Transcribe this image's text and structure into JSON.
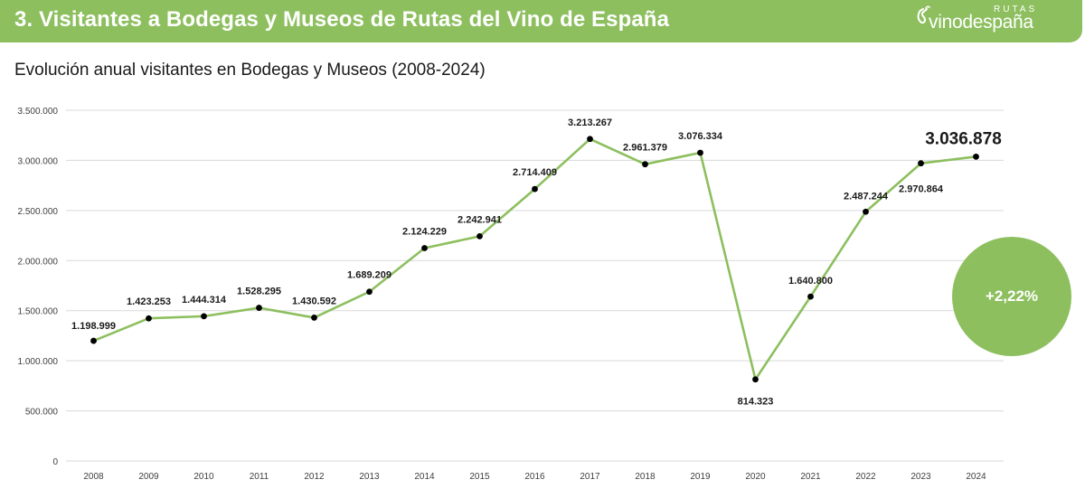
{
  "header": {
    "title": "3. Visitantes a Bodegas y Museos de Rutas del Vino de España",
    "logo_top": "RUTAS",
    "logo_word": "vinodespaña"
  },
  "colors": {
    "header_bg": "#8dbf5f",
    "line": "#8dbf5f",
    "marker": "#000000",
    "gridline": "#d9d9d9"
  },
  "callout": {
    "text": "+2,22%"
  },
  "chart_data": {
    "type": "line",
    "title": "Evolución anual visitantes en Bodegas y Museos (2008-2024)",
    "xlabel": "",
    "ylabel": "",
    "categories": [
      "2008",
      "2009",
      "2010",
      "2011",
      "2012",
      "2013",
      "2014",
      "2015",
      "2016",
      "2017",
      "2018",
      "2019",
      "2020",
      "2021",
      "2022",
      "2023",
      "2024"
    ],
    "series": [
      {
        "values": [
          1198999,
          1423253,
          1444314,
          1528295,
          1430592,
          1689209,
          2124229,
          2242941,
          2714409,
          3213267,
          2961379,
          3076334,
          814323,
          1640800,
          2487244,
          2970864,
          3036878
        ],
        "labels": [
          "1.198.999",
          "1.423.253",
          "1.444.314",
          "1.528.295",
          "1.430.592",
          "1.689.209",
          "2.124.229",
          "2.242.941",
          "2.714.409",
          "3.213.267",
          "2.961.379",
          "3.076.334",
          "814.323",
          "1.640.800",
          "2.487.244",
          "2.970.864",
          "3.036.878"
        ]
      }
    ],
    "ylim": [
      0,
      3500000
    ],
    "yticks": [
      0,
      500000,
      1000000,
      1500000,
      2000000,
      2500000,
      3000000,
      3500000
    ],
    "ytick_labels": [
      "0",
      "500.000",
      "1.000.000",
      "1.500.000",
      "2.000.000",
      "2.500.000",
      "3.000.000",
      "3.500.000"
    ],
    "grid": true,
    "legend": "none"
  }
}
